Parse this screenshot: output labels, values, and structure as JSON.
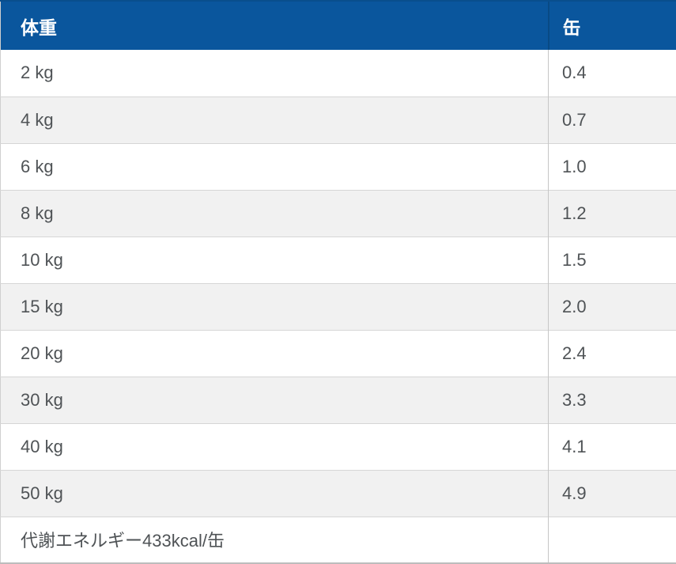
{
  "table": {
    "columns": [
      {
        "label": "体重"
      },
      {
        "label": "缶"
      }
    ],
    "rows": [
      {
        "weight": "2 kg",
        "cans": "0.4"
      },
      {
        "weight": "4 kg",
        "cans": "0.7"
      },
      {
        "weight": "6 kg",
        "cans": "1.0"
      },
      {
        "weight": "8 kg",
        "cans": "1.2"
      },
      {
        "weight": "10 kg",
        "cans": "1.5"
      },
      {
        "weight": "15 kg",
        "cans": "2.0"
      },
      {
        "weight": "20 kg",
        "cans": "2.4"
      },
      {
        "weight": "30 kg",
        "cans": "3.3"
      },
      {
        "weight": "40 kg",
        "cans": "4.1"
      },
      {
        "weight": "50 kg",
        "cans": "4.9"
      }
    ],
    "footer_note": "代謝エネルギー433kcal/缶"
  },
  "colors": {
    "header_bg": "#0a569d",
    "header_divider": "#084a85",
    "header_text": "#ffffff",
    "body_text": "#4f5356",
    "stripe_bg": "#f1f1f1",
    "row_border": "#d6d6d6",
    "outer_border": "#cfcfcf"
  },
  "chart_data": {
    "type": "table",
    "title": "",
    "columns": [
      "体重",
      "缶"
    ],
    "rows": [
      [
        "2 kg",
        0.4
      ],
      [
        "4 kg",
        0.7
      ],
      [
        "6 kg",
        1.0
      ],
      [
        "8 kg",
        1.2
      ],
      [
        "10 kg",
        1.5
      ],
      [
        "15 kg",
        2.0
      ],
      [
        "20 kg",
        2.4
      ],
      [
        "30 kg",
        3.3
      ],
      [
        "40 kg",
        4.1
      ],
      [
        "50 kg",
        4.9
      ]
    ],
    "footer": "代謝エネルギー433kcal/缶"
  }
}
